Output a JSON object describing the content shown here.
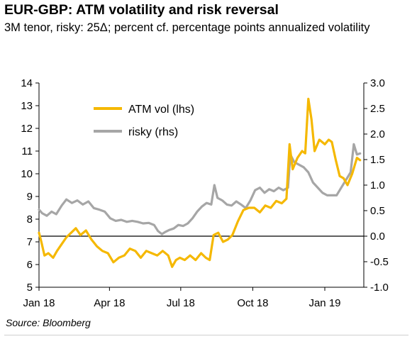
{
  "header": {
    "title": "EUR-GBP: ATM volatility and risk reversal",
    "subtitle": "3M tenor, risky: 25Δ; percent cf. percentage points annualized volatility"
  },
  "source": "Source: Bloomberg",
  "chart_data": {
    "type": "line",
    "title": "EUR-GBP: ATM volatility and risk reversal",
    "subtitle": "3M tenor, risky: 25Δ; percent cf. percentage points annualized volatility",
    "x_ticks": [
      "Jan 18",
      "Apr 18",
      "Jul 18",
      "Oct 18",
      "Jan 19"
    ],
    "x_tick_dates": [
      "2018-01-01",
      "2018-04-01",
      "2018-07-01",
      "2018-10-01",
      "2019-01-01"
    ],
    "x_range": [
      "2018-01-01",
      "2019-02-15"
    ],
    "y_left": {
      "min": 5,
      "max": 14,
      "step": 1,
      "ticks": [
        "5",
        "6",
        "7",
        "8",
        "9",
        "10",
        "11",
        "12",
        "13",
        "14"
      ]
    },
    "y_right": {
      "min": -1.0,
      "max": 3.0,
      "step": 0.5,
      "ticks": [
        "-1.0",
        "-0.5",
        "0.0",
        "0.5",
        "1.0",
        "1.5",
        "2.0",
        "2.5",
        "3.0"
      ]
    },
    "reference_line": {
      "axis": "rhs",
      "value": 0.0
    },
    "legend": {
      "placement": "top-left"
    },
    "grid": false,
    "series": [
      {
        "name": "ATM vol (lhs)",
        "axis": "lhs",
        "color": "#f5b800",
        "points": [
          [
            "2018-01-01",
            7.4
          ],
          [
            "2018-01-04",
            7.0
          ],
          [
            "2018-01-08",
            6.4
          ],
          [
            "2018-01-13",
            6.5
          ],
          [
            "2018-01-19",
            6.3
          ],
          [
            "2018-01-24",
            6.6
          ],
          [
            "2018-01-30",
            6.9
          ],
          [
            "2018-02-05",
            7.2
          ],
          [
            "2018-02-11",
            7.4
          ],
          [
            "2018-02-17",
            7.6
          ],
          [
            "2018-02-23",
            7.3
          ],
          [
            "2018-03-02",
            7.5
          ],
          [
            "2018-03-09",
            7.1
          ],
          [
            "2018-03-16",
            6.8
          ],
          [
            "2018-03-23",
            6.6
          ],
          [
            "2018-03-30",
            6.5
          ],
          [
            "2018-04-06",
            6.1
          ],
          [
            "2018-04-13",
            6.3
          ],
          [
            "2018-04-20",
            6.4
          ],
          [
            "2018-04-27",
            6.7
          ],
          [
            "2018-05-04",
            6.6
          ],
          [
            "2018-05-11",
            6.3
          ],
          [
            "2018-05-18",
            6.6
          ],
          [
            "2018-05-25",
            6.5
          ],
          [
            "2018-06-01",
            6.4
          ],
          [
            "2018-06-08",
            6.6
          ],
          [
            "2018-06-15",
            6.4
          ],
          [
            "2018-06-20",
            5.9
          ],
          [
            "2018-06-25",
            6.2
          ],
          [
            "2018-06-30",
            6.3
          ],
          [
            "2018-07-06",
            6.2
          ],
          [
            "2018-07-13",
            6.4
          ],
          [
            "2018-07-20",
            6.2
          ],
          [
            "2018-07-27",
            6.5
          ],
          [
            "2018-08-02",
            6.3
          ],
          [
            "2018-08-07",
            6.2
          ],
          [
            "2018-08-12",
            7.3
          ],
          [
            "2018-08-18",
            7.4
          ],
          [
            "2018-08-24",
            7.0
          ],
          [
            "2018-08-30",
            7.1
          ],
          [
            "2018-09-05",
            7.3
          ],
          [
            "2018-09-12",
            7.9
          ],
          [
            "2018-09-19",
            8.4
          ],
          [
            "2018-09-26",
            8.5
          ],
          [
            "2018-10-03",
            8.5
          ],
          [
            "2018-10-10",
            8.3
          ],
          [
            "2018-10-17",
            8.6
          ],
          [
            "2018-10-24",
            8.5
          ],
          [
            "2018-10-31",
            8.8
          ],
          [
            "2018-11-07",
            8.7
          ],
          [
            "2018-11-13",
            8.9
          ],
          [
            "2018-11-17",
            11.3
          ],
          [
            "2018-11-21",
            10.2
          ],
          [
            "2018-11-27",
            10.7
          ],
          [
            "2018-12-03",
            11.0
          ],
          [
            "2018-12-07",
            10.9
          ],
          [
            "2018-12-11",
            13.3
          ],
          [
            "2018-12-15",
            12.4
          ],
          [
            "2018-12-19",
            11.0
          ],
          [
            "2018-12-25",
            11.5
          ],
          [
            "2019-01-01",
            11.3
          ],
          [
            "2019-01-06",
            11.5
          ],
          [
            "2019-01-10",
            11.4
          ],
          [
            "2019-01-15",
            10.6
          ],
          [
            "2019-01-20",
            9.9
          ],
          [
            "2019-01-25",
            9.8
          ],
          [
            "2019-01-30",
            9.5
          ],
          [
            "2019-02-05",
            10.0
          ],
          [
            "2019-02-11",
            10.7
          ],
          [
            "2019-02-15",
            10.6
          ]
        ]
      },
      {
        "name": "risky (rhs)",
        "axis": "rhs",
        "color": "#a6a6a6",
        "points": [
          [
            "2018-01-01",
            0.52
          ],
          [
            "2018-01-05",
            0.45
          ],
          [
            "2018-01-11",
            0.4
          ],
          [
            "2018-01-17",
            0.48
          ],
          [
            "2018-01-23",
            0.43
          ],
          [
            "2018-01-30",
            0.6
          ],
          [
            "2018-02-05",
            0.72
          ],
          [
            "2018-02-12",
            0.65
          ],
          [
            "2018-02-19",
            0.7
          ],
          [
            "2018-02-26",
            0.62
          ],
          [
            "2018-03-05",
            0.68
          ],
          [
            "2018-03-12",
            0.55
          ],
          [
            "2018-03-19",
            0.52
          ],
          [
            "2018-03-26",
            0.48
          ],
          [
            "2018-04-02",
            0.35
          ],
          [
            "2018-04-09",
            0.3
          ],
          [
            "2018-04-16",
            0.32
          ],
          [
            "2018-04-23",
            0.28
          ],
          [
            "2018-04-30",
            0.3
          ],
          [
            "2018-05-07",
            0.28
          ],
          [
            "2018-05-14",
            0.25
          ],
          [
            "2018-05-21",
            0.26
          ],
          [
            "2018-05-28",
            0.22
          ],
          [
            "2018-06-02",
            0.1
          ],
          [
            "2018-06-07",
            0.04
          ],
          [
            "2018-06-11",
            0.08
          ],
          [
            "2018-06-16",
            0.12
          ],
          [
            "2018-06-22",
            0.15
          ],
          [
            "2018-06-28",
            0.22
          ],
          [
            "2018-07-04",
            0.2
          ],
          [
            "2018-07-10",
            0.25
          ],
          [
            "2018-07-16",
            0.35
          ],
          [
            "2018-07-22",
            0.48
          ],
          [
            "2018-07-28",
            0.58
          ],
          [
            "2018-08-03",
            0.65
          ],
          [
            "2018-08-09",
            0.62
          ],
          [
            "2018-08-13",
            1.0
          ],
          [
            "2018-08-17",
            0.75
          ],
          [
            "2018-08-23",
            0.7
          ],
          [
            "2018-08-29",
            0.62
          ],
          [
            "2018-09-04",
            0.6
          ],
          [
            "2018-09-10",
            0.68
          ],
          [
            "2018-09-16",
            0.62
          ],
          [
            "2018-09-22",
            0.55
          ],
          [
            "2018-09-28",
            0.7
          ],
          [
            "2018-10-04",
            0.9
          ],
          [
            "2018-10-10",
            0.95
          ],
          [
            "2018-10-16",
            0.85
          ],
          [
            "2018-10-22",
            0.92
          ],
          [
            "2018-10-28",
            0.88
          ],
          [
            "2018-11-03",
            0.95
          ],
          [
            "2018-11-09",
            0.9
          ],
          [
            "2018-11-15",
            0.95
          ],
          [
            "2018-11-18",
            1.6
          ],
          [
            "2018-11-23",
            1.45
          ],
          [
            "2018-11-29",
            1.4
          ],
          [
            "2018-12-05",
            1.35
          ],
          [
            "2018-12-11",
            1.25
          ],
          [
            "2018-12-17",
            1.05
          ],
          [
            "2018-12-23",
            0.95
          ],
          [
            "2018-12-29",
            0.85
          ],
          [
            "2019-01-04",
            0.8
          ],
          [
            "2019-01-10",
            0.8
          ],
          [
            "2019-01-16",
            0.8
          ],
          [
            "2019-01-22",
            0.95
          ],
          [
            "2019-01-28",
            1.1
          ],
          [
            "2019-02-03",
            1.25
          ],
          [
            "2019-02-07",
            1.8
          ],
          [
            "2019-02-11",
            1.6
          ],
          [
            "2019-02-15",
            1.62
          ]
        ]
      }
    ]
  }
}
